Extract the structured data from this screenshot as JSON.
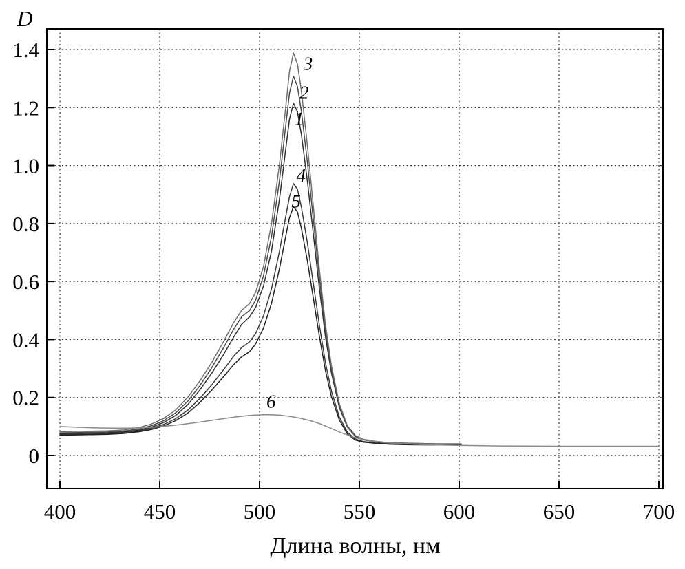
{
  "chart_data": {
    "type": "line",
    "title": "",
    "xlabel": "Длина волны, нм",
    "ylabel": "D",
    "xlim": [
      400,
      700
    ],
    "ylim": [
      0,
      1.4
    ],
    "x_tick_values": [
      400,
      450,
      500,
      550,
      600,
      650,
      700
    ],
    "x_tick_labels": [
      "400",
      "450",
      "500",
      "550",
      "600",
      "650",
      "700"
    ],
    "y_tick_values": [
      0,
      0.2,
      0.4,
      0.6,
      0.8,
      1.0,
      1.2,
      1.4
    ],
    "y_tick_labels": [
      "0",
      "0.2",
      "0.4",
      "0.6",
      "0.8",
      "1.0",
      "1.2",
      "1.4"
    ],
    "grid": {
      "style": "dotted",
      "color": "#333333"
    },
    "frame_color": "#000000",
    "legend_position": "inline-labels",
    "series": [
      {
        "name": "1",
        "color": "#2e2e2e",
        "peak": {
          "x": 517,
          "y": 1.22
        },
        "label": {
          "text": "1",
          "x": 517.5,
          "y": 1.14
        },
        "points": [
          [
            400,
            0.075
          ],
          [
            408,
            0.076
          ],
          [
            416,
            0.077
          ],
          [
            424,
            0.078
          ],
          [
            432,
            0.081
          ],
          [
            440,
            0.088
          ],
          [
            446,
            0.098
          ],
          [
            452,
            0.114
          ],
          [
            458,
            0.138
          ],
          [
            464,
            0.175
          ],
          [
            470,
            0.225
          ],
          [
            476,
            0.283
          ],
          [
            482,
            0.348
          ],
          [
            487,
            0.408
          ],
          [
            491,
            0.452
          ],
          [
            495,
            0.478
          ],
          [
            498,
            0.51
          ],
          [
            502,
            0.585
          ],
          [
            506,
            0.705
          ],
          [
            510,
            0.885
          ],
          [
            513,
            1.05
          ],
          [
            515,
            1.16
          ],
          [
            517,
            1.215
          ],
          [
            519,
            1.185
          ],
          [
            521,
            1.105
          ],
          [
            524,
            0.945
          ],
          [
            527,
            0.76
          ],
          [
            530,
            0.575
          ],
          [
            533,
            0.41
          ],
          [
            536,
            0.285
          ],
          [
            540,
            0.165
          ],
          [
            544,
            0.098
          ],
          [
            548,
            0.066
          ],
          [
            552,
            0.054
          ],
          [
            558,
            0.047
          ],
          [
            565,
            0.043
          ],
          [
            575,
            0.041
          ],
          [
            590,
            0.039
          ],
          [
            601,
            0.039
          ]
        ]
      },
      {
        "name": "2",
        "color": "#4a4a4a",
        "peak": {
          "x": 517,
          "y": 1.31
        },
        "label": {
          "text": "2",
          "x": 520,
          "y": 1.23
        },
        "points": [
          [
            400,
            0.078
          ],
          [
            408,
            0.079
          ],
          [
            416,
            0.08
          ],
          [
            424,
            0.081
          ],
          [
            432,
            0.084
          ],
          [
            440,
            0.092
          ],
          [
            446,
            0.103
          ],
          [
            452,
            0.12
          ],
          [
            458,
            0.147
          ],
          [
            464,
            0.187
          ],
          [
            470,
            0.24
          ],
          [
            476,
            0.302
          ],
          [
            482,
            0.372
          ],
          [
            487,
            0.435
          ],
          [
            491,
            0.478
          ],
          [
            495,
            0.5
          ],
          [
            498,
            0.535
          ],
          [
            502,
            0.62
          ],
          [
            506,
            0.755
          ],
          [
            510,
            0.95
          ],
          [
            513,
            1.13
          ],
          [
            515,
            1.25
          ],
          [
            517,
            1.308
          ],
          [
            519,
            1.272
          ],
          [
            521,
            1.185
          ],
          [
            524,
            1.01
          ],
          [
            527,
            0.81
          ],
          [
            530,
            0.61
          ],
          [
            533,
            0.432
          ],
          [
            536,
            0.298
          ],
          [
            540,
            0.172
          ],
          [
            544,
            0.1
          ],
          [
            548,
            0.068
          ],
          [
            552,
            0.055
          ],
          [
            558,
            0.048
          ],
          [
            565,
            0.044
          ],
          [
            575,
            0.042
          ],
          [
            590,
            0.04
          ],
          [
            601,
            0.04
          ]
        ]
      },
      {
        "name": "3",
        "color": "#6e6e6e",
        "peak": {
          "x": 517,
          "y": 1.39
        },
        "label": {
          "text": "3",
          "x": 522,
          "y": 1.33
        },
        "points": [
          [
            400,
            0.082
          ],
          [
            408,
            0.083
          ],
          [
            416,
            0.084
          ],
          [
            424,
            0.085
          ],
          [
            432,
            0.088
          ],
          [
            440,
            0.097
          ],
          [
            446,
            0.109
          ],
          [
            452,
            0.128
          ],
          [
            458,
            0.157
          ],
          [
            464,
            0.2
          ],
          [
            470,
            0.256
          ],
          [
            476,
            0.32
          ],
          [
            482,
            0.393
          ],
          [
            487,
            0.458
          ],
          [
            491,
            0.5
          ],
          [
            495,
            0.524
          ],
          [
            498,
            0.562
          ],
          [
            502,
            0.652
          ],
          [
            506,
            0.8
          ],
          [
            510,
            1.005
          ],
          [
            513,
            1.195
          ],
          [
            515,
            1.325
          ],
          [
            517,
            1.388
          ],
          [
            519,
            1.35
          ],
          [
            521,
            1.255
          ],
          [
            524,
            1.068
          ],
          [
            527,
            0.855
          ],
          [
            530,
            0.64
          ],
          [
            533,
            0.452
          ],
          [
            536,
            0.31
          ],
          [
            540,
            0.178
          ],
          [
            544,
            0.103
          ],
          [
            548,
            0.069
          ],
          [
            552,
            0.056
          ],
          [
            558,
            0.049
          ],
          [
            565,
            0.044
          ],
          [
            575,
            0.042
          ],
          [
            590,
            0.04
          ],
          [
            601,
            0.04
          ]
        ]
      },
      {
        "name": "4",
        "color": "#3a3a3a",
        "peak": {
          "x": 517,
          "y": 0.94
        },
        "label": {
          "text": "4",
          "x": 518.5,
          "y": 0.945
        },
        "points": [
          [
            400,
            0.072
          ],
          [
            408,
            0.073
          ],
          [
            416,
            0.074
          ],
          [
            424,
            0.075
          ],
          [
            432,
            0.078
          ],
          [
            440,
            0.085
          ],
          [
            446,
            0.094
          ],
          [
            452,
            0.107
          ],
          [
            458,
            0.127
          ],
          [
            464,
            0.156
          ],
          [
            470,
            0.196
          ],
          [
            476,
            0.243
          ],
          [
            482,
            0.296
          ],
          [
            487,
            0.342
          ],
          [
            491,
            0.372
          ],
          [
            495,
            0.392
          ],
          [
            498,
            0.42
          ],
          [
            502,
            0.482
          ],
          [
            506,
            0.575
          ],
          [
            510,
            0.705
          ],
          [
            513,
            0.82
          ],
          [
            515,
            0.893
          ],
          [
            517,
            0.938
          ],
          [
            519,
            0.918
          ],
          [
            521,
            0.855
          ],
          [
            524,
            0.732
          ],
          [
            527,
            0.59
          ],
          [
            530,
            0.448
          ],
          [
            533,
            0.32
          ],
          [
            536,
            0.222
          ],
          [
            540,
            0.132
          ],
          [
            544,
            0.08
          ],
          [
            548,
            0.057
          ],
          [
            552,
            0.048
          ],
          [
            558,
            0.043
          ],
          [
            565,
            0.04
          ],
          [
            575,
            0.038
          ],
          [
            590,
            0.037
          ],
          [
            601,
            0.037
          ]
        ]
      },
      {
        "name": "5",
        "color": "#1f1f1f",
        "peak": {
          "x": 517,
          "y": 0.86
        },
        "label": {
          "text": "5",
          "x": 516,
          "y": 0.855
        },
        "points": [
          [
            400,
            0.07
          ],
          [
            408,
            0.071
          ],
          [
            416,
            0.072
          ],
          [
            424,
            0.073
          ],
          [
            432,
            0.076
          ],
          [
            440,
            0.082
          ],
          [
            446,
            0.09
          ],
          [
            452,
            0.102
          ],
          [
            458,
            0.12
          ],
          [
            464,
            0.146
          ],
          [
            470,
            0.182
          ],
          [
            476,
            0.225
          ],
          [
            482,
            0.272
          ],
          [
            487,
            0.313
          ],
          [
            491,
            0.34
          ],
          [
            495,
            0.358
          ],
          [
            498,
            0.384
          ],
          [
            502,
            0.44
          ],
          [
            506,
            0.525
          ],
          [
            510,
            0.645
          ],
          [
            513,
            0.752
          ],
          [
            515,
            0.82
          ],
          [
            517,
            0.858
          ],
          [
            519,
            0.84
          ],
          [
            521,
            0.782
          ],
          [
            524,
            0.67
          ],
          [
            527,
            0.54
          ],
          [
            530,
            0.41
          ],
          [
            533,
            0.293
          ],
          [
            536,
            0.203
          ],
          [
            540,
            0.122
          ],
          [
            544,
            0.074
          ],
          [
            548,
            0.053
          ],
          [
            552,
            0.046
          ],
          [
            558,
            0.042
          ],
          [
            565,
            0.039
          ],
          [
            575,
            0.037
          ],
          [
            590,
            0.036
          ],
          [
            601,
            0.036
          ]
        ]
      },
      {
        "name": "6",
        "color": "#8a8a8a",
        "peak": {
          "x": 505,
          "y": 0.14
        },
        "label": {
          "text": "6",
          "x": 503.5,
          "y": 0.165
        },
        "points": [
          [
            400,
            0.1
          ],
          [
            410,
            0.097
          ],
          [
            420,
            0.095
          ],
          [
            430,
            0.094
          ],
          [
            440,
            0.095
          ],
          [
            450,
            0.099
          ],
          [
            460,
            0.106
          ],
          [
            470,
            0.115
          ],
          [
            480,
            0.125
          ],
          [
            488,
            0.133
          ],
          [
            495,
            0.138
          ],
          [
            500,
            0.14
          ],
          [
            505,
            0.141
          ],
          [
            510,
            0.139
          ],
          [
            515,
            0.135
          ],
          [
            520,
            0.129
          ],
          [
            525,
            0.121
          ],
          [
            530,
            0.11
          ],
          [
            535,
            0.096
          ],
          [
            540,
            0.081
          ],
          [
            545,
            0.068
          ],
          [
            550,
            0.058
          ],
          [
            556,
            0.05
          ],
          [
            562,
            0.045
          ],
          [
            570,
            0.041
          ],
          [
            580,
            0.038
          ],
          [
            590,
            0.036
          ],
          [
            600,
            0.035
          ],
          [
            620,
            0.033
          ],
          [
            650,
            0.032
          ],
          [
            700,
            0.032
          ]
        ]
      }
    ]
  }
}
